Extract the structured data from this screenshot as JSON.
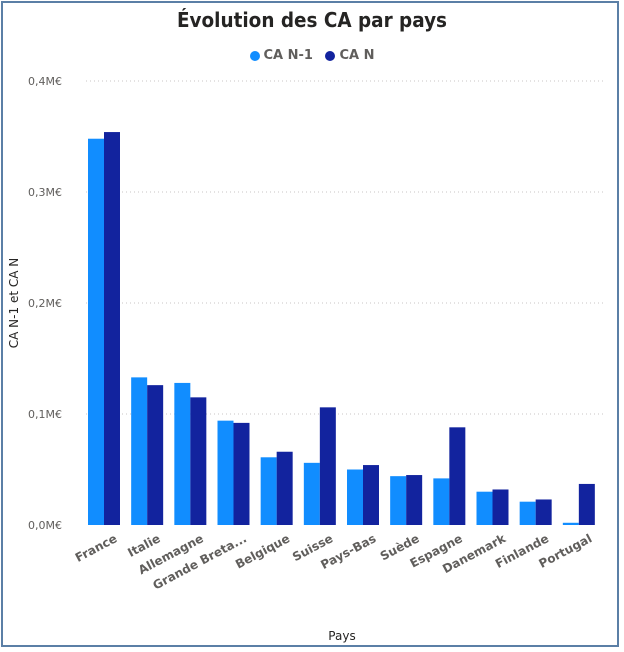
{
  "chart_data": {
    "type": "bar",
    "title": "Évolution des CA par pays",
    "xlabel": "Pays",
    "ylabel": "CA N-1 et CA N",
    "ylim": [
      0,
      0.4
    ],
    "y_unit": "M€",
    "yticks": [
      "0,0M€",
      "0,1M€",
      "0,2M€",
      "0,3M€",
      "0,4M€"
    ],
    "yticks_values": [
      0,
      0.1,
      0.2,
      0.3,
      0.4
    ],
    "grid": true,
    "legend_position": "top-center",
    "categories": [
      "France",
      "Italie",
      "Allemagne",
      "Grande Breta...",
      "Belgique",
      "Suisse",
      "Pays-Bas",
      "Suède",
      "Espagne",
      "Danemark",
      "Finlande",
      "Portugal"
    ],
    "series": [
      {
        "name": "CA N-1",
        "color": "#118dff",
        "values": [
          0.348,
          0.133,
          0.128,
          0.094,
          0.061,
          0.056,
          0.05,
          0.044,
          0.042,
          0.03,
          0.021,
          0.002
        ]
      },
      {
        "name": "CA N",
        "color": "#12239e",
        "values": [
          0.354,
          0.126,
          0.115,
          0.092,
          0.066,
          0.106,
          0.054,
          0.045,
          0.088,
          0.032,
          0.023,
          0.037
        ]
      }
    ]
  }
}
